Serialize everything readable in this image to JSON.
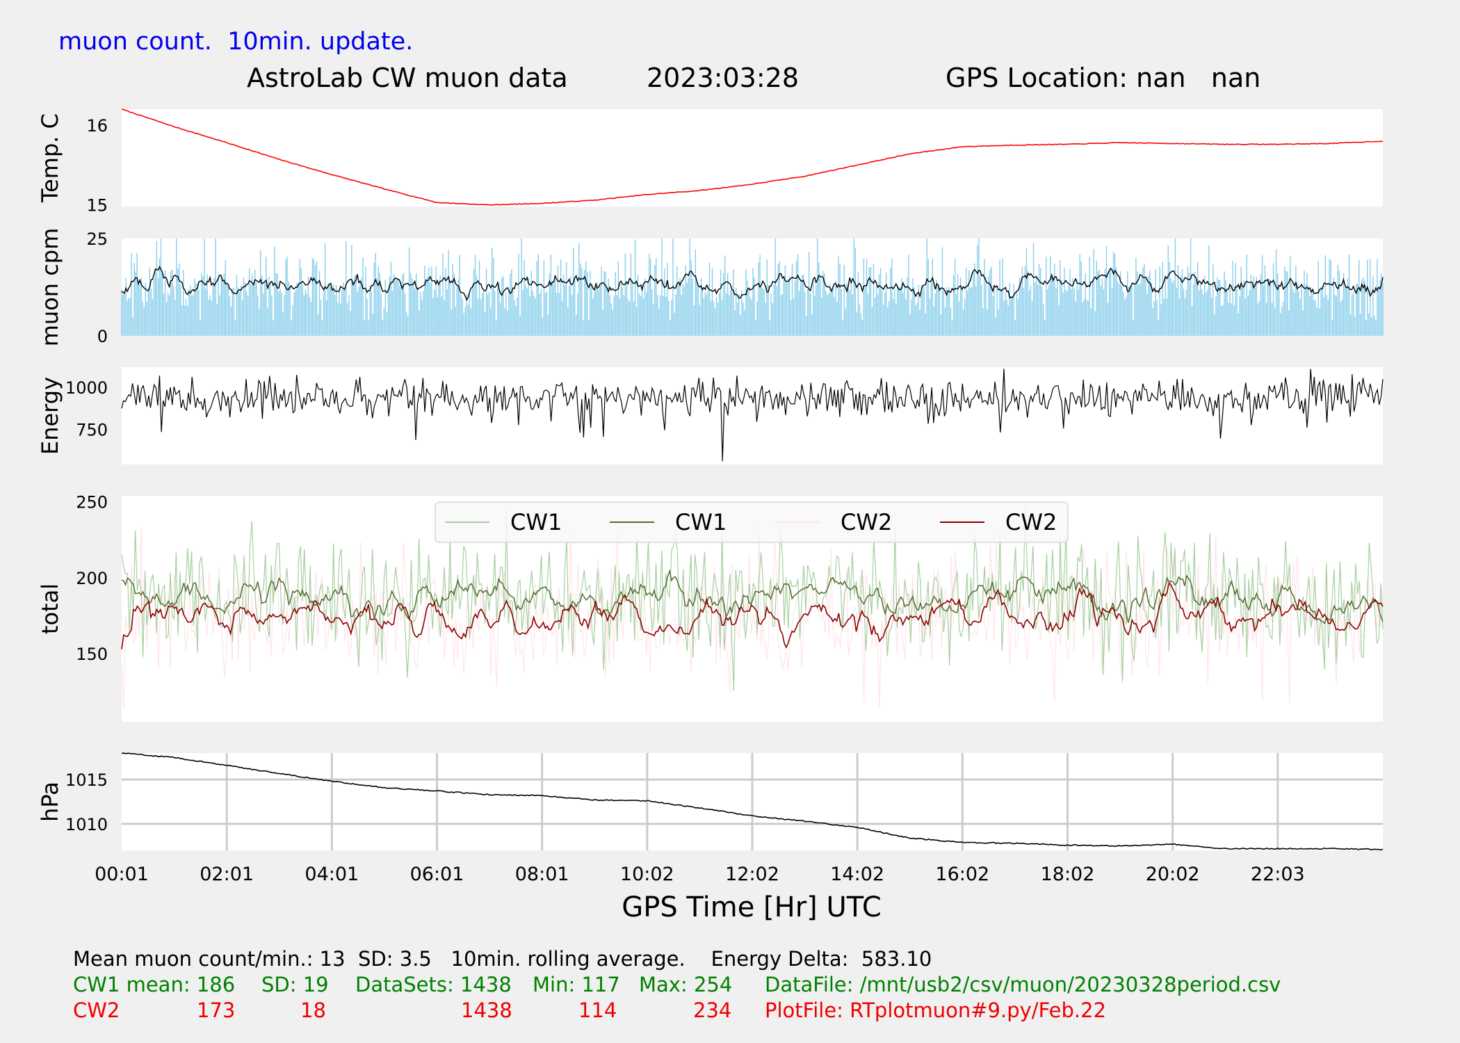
{
  "header": {
    "note": "muon count.  10min. update.",
    "title": "AstroLab CW muon data",
    "date": "2023:03:28",
    "location": "GPS Location: nan   nan"
  },
  "chart_data": [
    {
      "id": "temperature",
      "type": "line",
      "ylabel": "Temp. C",
      "yticks": [
        15,
        16
      ],
      "ylim": [
        14.98,
        16.2
      ],
      "color": "#ff0000",
      "x": [
        0,
        1,
        2,
        3,
        4,
        5,
        6,
        7,
        8,
        9,
        10,
        11,
        12,
        13,
        14,
        15,
        16,
        17,
        18,
        19,
        20,
        21,
        22,
        23,
        24
      ],
      "values": [
        16.2,
        15.98,
        15.78,
        15.57,
        15.38,
        15.2,
        15.03,
        15.0,
        15.02,
        15.06,
        15.13,
        15.18,
        15.26,
        15.36,
        15.5,
        15.64,
        15.73,
        15.75,
        15.76,
        15.78,
        15.77,
        15.76,
        15.76,
        15.77,
        15.8
      ]
    },
    {
      "id": "muon-cpm",
      "type": "bar",
      "ylabel": "muon cpm",
      "yticks": [
        0,
        25
      ],
      "ylim": [
        0,
        25
      ],
      "bar_color": "#87ceeb",
      "line_color": "#000000",
      "mean": 13,
      "sd": 3.5
    },
    {
      "id": "energy",
      "type": "line",
      "ylabel": "Energy",
      "yticks": [
        750,
        1000
      ],
      "ylim": [
        540,
        1120
      ],
      "color": "#000000",
      "mean": 935,
      "sd": 55
    },
    {
      "id": "total",
      "type": "line",
      "ylabel": "total",
      "yticks": [
        150,
        200,
        250
      ],
      "ylim": [
        105,
        254
      ],
      "legend": {
        "placement": "top-center",
        "entries": [
          {
            "name": "CW1",
            "color": "#a6cfa0"
          },
          {
            "name": "CW1",
            "color": "#556b2f"
          },
          {
            "name": "CW2",
            "color": "#ffe4e9"
          },
          {
            "name": "CW2",
            "color": "#8b0000"
          }
        ]
      },
      "series": [
        {
          "name": "CW1",
          "mean": 186,
          "sd": 19,
          "min": 117,
          "max": 254
        },
        {
          "name": "CW2",
          "mean": 173,
          "sd": 18,
          "min": 114,
          "max": 234
        }
      ]
    },
    {
      "id": "pressure",
      "type": "line",
      "ylabel": "hPa",
      "yticks": [
        1010,
        1015
      ],
      "ylim": [
        1007,
        1018
      ],
      "grid": true,
      "color": "#000000",
      "x": [
        0,
        1,
        2,
        3,
        4,
        5,
        6,
        7,
        8,
        9,
        10,
        11,
        12,
        13,
        14,
        15,
        16,
        17,
        18,
        19,
        20,
        21,
        22,
        23,
        24
      ],
      "values": [
        1018,
        1017.5,
        1016.6,
        1015.7,
        1014.8,
        1014.1,
        1013.7,
        1013.3,
        1013.2,
        1012.7,
        1012.6,
        1011.8,
        1010.9,
        1010.3,
        1009.6,
        1008.4,
        1007.9,
        1007.8,
        1007.6,
        1007.5,
        1007.7,
        1007.2,
        1007.2,
        1007.2,
        1007.1
      ]
    }
  ],
  "xaxis": {
    "label": "GPS Time  [Hr] UTC",
    "ticks": [
      {
        "pos": 0,
        "label": "00:01"
      },
      {
        "pos": 2,
        "label": "02:01"
      },
      {
        "pos": 4,
        "label": "04:01"
      },
      {
        "pos": 6,
        "label": "06:01"
      },
      {
        "pos": 8,
        "label": "08:01"
      },
      {
        "pos": 10,
        "label": "10:02"
      },
      {
        "pos": 12,
        "label": "12:02"
      },
      {
        "pos": 14,
        "label": "14:02"
      },
      {
        "pos": 16,
        "label": "16:02"
      },
      {
        "pos": 18,
        "label": "18:02"
      },
      {
        "pos": 20,
        "label": "20:02"
      },
      {
        "pos": 22,
        "label": "22:03"
      }
    ]
  },
  "footer": {
    "line1": "Mean muon count/min.: 13  SD: 3.5   10min. rolling average.    Energy Delta:  583.10",
    "cw1": {
      "label": "CW1 mean: 186",
      "sd": "SD: 19",
      "datasets": "DataSets: 1438",
      "min": "Min: 117",
      "max": "Max: 254",
      "file": "DataFile: /mnt/usb2/csv/muon/20230328period.csv"
    },
    "cw2": {
      "label": "CW2",
      "mean": "173",
      "sd": "18",
      "datasets": "1438",
      "min": "114",
      "max": "234",
      "file": "PlotFile: RTplotmuon#9.py/Feb.22"
    }
  }
}
